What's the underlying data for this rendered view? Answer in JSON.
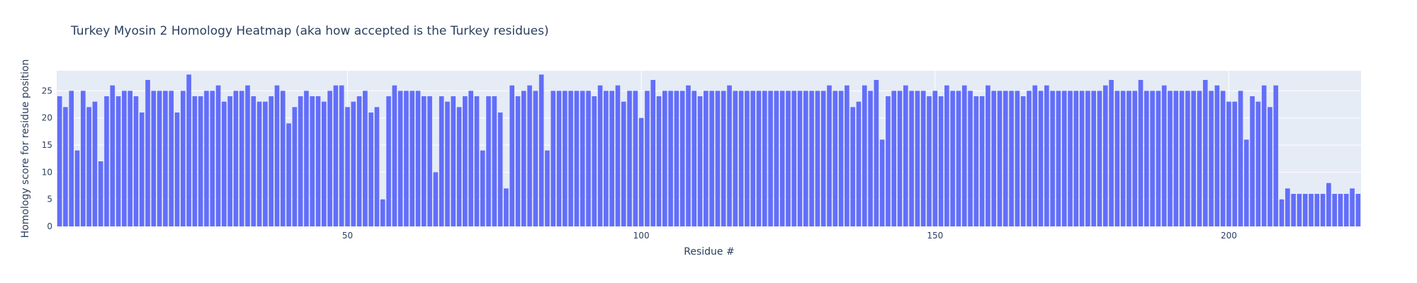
{
  "chart_data": {
    "type": "bar",
    "title": "Turkey Myosin 2 Homology Heatmap (aka how accepted is the Turkey residues)",
    "xlabel": "Residue #",
    "ylabel": "Homology score for residue position",
    "x_start": 1,
    "xlim": [
      0.5,
      222.5
    ],
    "ylim": [
      0,
      28.7
    ],
    "x_ticks": [
      50,
      100,
      150,
      200
    ],
    "y_ticks": [
      0,
      5,
      10,
      15,
      20,
      25
    ],
    "grid": true,
    "legend": "none",
    "values": [
      24,
      22,
      25,
      14,
      25,
      22,
      23,
      12,
      24,
      26,
      24,
      25,
      25,
      24,
      21,
      27,
      25,
      25,
      25,
      25,
      21,
      25,
      28,
      24,
      24,
      25,
      25,
      26,
      23,
      24,
      25,
      25,
      26,
      24,
      23,
      23,
      24,
      26,
      25,
      19,
      22,
      24,
      25,
      24,
      24,
      23,
      25,
      26,
      26,
      22,
      23,
      24,
      25,
      21,
      22,
      5,
      24,
      26,
      25,
      25,
      25,
      25,
      24,
      24,
      10,
      24,
      23,
      24,
      22,
      24,
      25,
      24,
      14,
      24,
      24,
      21,
      7,
      26,
      24,
      25,
      26,
      25,
      28,
      14,
      25,
      25,
      25,
      25,
      25,
      25,
      25,
      24,
      26,
      25,
      25,
      26,
      23,
      25,
      25,
      20,
      25,
      27,
      24,
      25,
      25,
      25,
      25,
      26,
      25,
      24,
      25,
      25,
      25,
      25,
      26,
      25,
      25,
      25,
      25,
      25,
      25,
      25,
      25,
      25,
      25,
      25,
      25,
      25,
      25,
      25,
      25,
      26,
      25,
      25,
      26,
      22,
      23,
      26,
      25,
      27,
      16,
      24,
      25,
      25,
      26,
      25,
      25,
      25,
      24,
      25,
      24,
      26,
      25,
      25,
      26,
      25,
      24,
      24,
      26,
      25,
      25,
      25,
      25,
      25,
      24,
      25,
      26,
      25,
      26,
      25,
      25,
      25,
      25,
      25,
      25,
      25,
      25,
      25,
      26,
      27,
      25,
      25,
      25,
      25,
      27,
      25,
      25,
      25,
      26,
      25,
      25,
      25,
      25,
      25,
      25,
      27,
      25,
      26,
      25,
      23,
      23,
      25,
      16,
      24,
      23,
      26,
      22,
      26,
      5,
      7,
      6,
      6,
      6,
      6,
      6,
      6,
      8,
      6,
      6,
      6,
      7,
      6
    ]
  },
  "colors": {
    "bar": "#636efa",
    "plot_bg": "#e5ecf6",
    "grid": "#ffffff",
    "text": "#2a3f5f"
  }
}
